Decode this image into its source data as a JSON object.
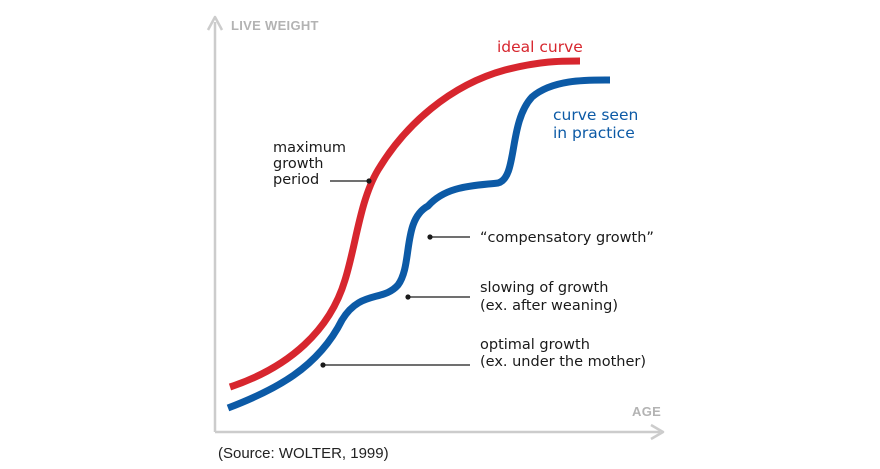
{
  "axes": {
    "y_label": "LIVE WEIGHT",
    "x_label": "AGE"
  },
  "curves": {
    "ideal": {
      "label": "ideal curve",
      "color": "#d7262e"
    },
    "practice": {
      "label_line1": "curve seen",
      "label_line2": "in practice",
      "color": "#0c5aa6"
    }
  },
  "annotations": {
    "max_growth": {
      "line1": "maximum",
      "line2": "growth",
      "line3": "period"
    },
    "compensatory": {
      "line1": "“compensatory growth”"
    },
    "slowing": {
      "line1": "slowing of growth",
      "line2": "(ex. after weaning)"
    },
    "optimal": {
      "line1": "optimal growth",
      "line2": "(ex. under the mother)"
    }
  },
  "source": "(Source: WOLTER, 1999)",
  "colors": {
    "axis": "#cccccc",
    "text": "#1a1a1a",
    "leader": "#1a1a1a"
  }
}
